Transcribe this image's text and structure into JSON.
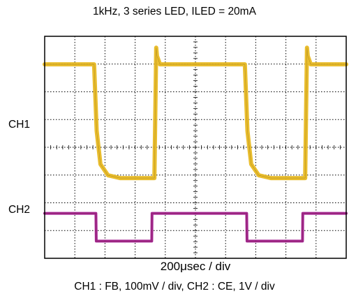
{
  "title": "1kHz, 3 series LED, ILED = 20mA",
  "channel_labels": {
    "ch1": "CH1",
    "ch2": "CH2"
  },
  "timebase_label": "200μsec / div",
  "channel_settings": "CH1 : FB, 100mV / div,    CH2 : CE, 1V / div",
  "colors": {
    "ch1": "#e8b923",
    "ch2": "#a0198c",
    "grid": "#000000"
  },
  "chart_data": {
    "type": "line",
    "title": "1kHz, 3 series LED, ILED = 20mA",
    "xlabel": "200μsec / div",
    "ylabel": "",
    "x_unit": "μs",
    "xlim": [
      0,
      2000
    ],
    "divisions": {
      "x": 10,
      "y": 8
    },
    "grid": true,
    "series": [
      {
        "name": "CH1",
        "x": [
          0,
          328,
          345,
          370,
          420,
          500,
          700,
          728,
          740,
          745,
          765,
          1328,
          1345,
          1370,
          1420,
          1500,
          1700,
          1728,
          1740,
          1745,
          1765,
          2000
        ],
        "y": [
          0,
          0,
          -0.24,
          -0.36,
          -0.4,
          -0.41,
          -0.41,
          -0.41,
          0.06,
          0.03,
          0,
          0,
          -0.24,
          -0.36,
          -0.4,
          -0.41,
          -0.41,
          -0.41,
          0.06,
          0.03,
          0,
          0
        ]
      },
      {
        "name": "CH2",
        "x": [
          0,
          340,
          342,
          710,
          712,
          1340,
          1342,
          1710,
          1712,
          2000
        ],
        "y": [
          1,
          1,
          0,
          0,
          1,
          1,
          0,
          0,
          1,
          1
        ]
      }
    ]
  }
}
